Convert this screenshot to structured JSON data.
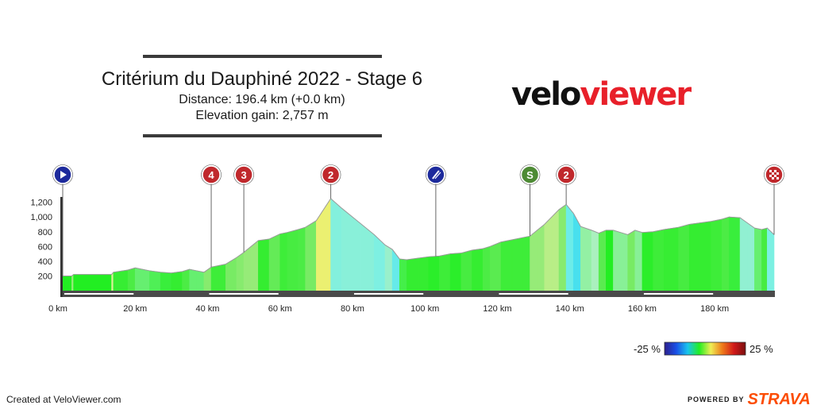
{
  "header": {
    "title": "Critérium du Dauphiné 2022 - Stage 6",
    "distance_line": "Distance: 196.4 km (+0.0 km)",
    "elevation_line": "Elevation gain: 2,757 m"
  },
  "logo": {
    "part1": "velo",
    "part2": "viewer"
  },
  "footer": {
    "created": "Created at VeloViewer.com",
    "powered": "POWERED BY",
    "brand": "STRAVA"
  },
  "legend": {
    "min_label": "-25 %",
    "max_label": "25 %",
    "gradient_colors": [
      "#2d1f8c",
      "#1a4fe6",
      "#19c4ee",
      "#22ee22",
      "#eeee55",
      "#ee7a1a",
      "#d11a1a",
      "#7a0f0f"
    ]
  },
  "chart_data": {
    "type": "area",
    "title": "Critérium du Dauphiné 2022 - Stage 6",
    "xlabel": "",
    "ylabel": "",
    "xlim": [
      0,
      196.4
    ],
    "ylim": [
      0,
      1300
    ],
    "x_ticks": [
      0,
      20,
      40,
      60,
      80,
      100,
      120,
      140,
      160,
      180
    ],
    "x_tick_labels": [
      "0 km",
      "20 km",
      "40 km",
      "60 km",
      "80 km",
      "100 km",
      "120 km",
      "140 km",
      "160 km",
      "180 km"
    ],
    "y_ticks": [
      200,
      400,
      600,
      800,
      1000,
      1200
    ],
    "y_tick_labels": [
      "200",
      "400",
      "600",
      "800",
      "1,000",
      "1,200"
    ],
    "profile": [
      {
        "x": 0,
        "y": 200
      },
      {
        "x": 2.5,
        "y": 200
      },
      {
        "x": 3,
        "y": 220
      },
      {
        "x": 13.5,
        "y": 220
      },
      {
        "x": 14,
        "y": 250
      },
      {
        "x": 18,
        "y": 280
      },
      {
        "x": 20,
        "y": 310
      },
      {
        "x": 22,
        "y": 290
      },
      {
        "x": 24,
        "y": 270
      },
      {
        "x": 27,
        "y": 250
      },
      {
        "x": 30,
        "y": 240
      },
      {
        "x": 33,
        "y": 260
      },
      {
        "x": 35,
        "y": 290
      },
      {
        "x": 37,
        "y": 270
      },
      {
        "x": 39,
        "y": 250
      },
      {
        "x": 41,
        "y": 320
      },
      {
        "x": 43,
        "y": 340
      },
      {
        "x": 45,
        "y": 360
      },
      {
        "x": 48,
        "y": 450
      },
      {
        "x": 50,
        "y": 520
      },
      {
        "x": 52,
        "y": 600
      },
      {
        "x": 54,
        "y": 680
      },
      {
        "x": 57,
        "y": 700
      },
      {
        "x": 60,
        "y": 770
      },
      {
        "x": 62,
        "y": 790
      },
      {
        "x": 65,
        "y": 830
      },
      {
        "x": 67,
        "y": 860
      },
      {
        "x": 70,
        "y": 950
      },
      {
        "x": 74,
        "y": 1250
      },
      {
        "x": 77,
        "y": 1120
      },
      {
        "x": 82,
        "y": 920
      },
      {
        "x": 86,
        "y": 760
      },
      {
        "x": 89,
        "y": 620
      },
      {
        "x": 91,
        "y": 560
      },
      {
        "x": 93,
        "y": 430
      },
      {
        "x": 95,
        "y": 420
      },
      {
        "x": 98,
        "y": 440
      },
      {
        "x": 101,
        "y": 460
      },
      {
        "x": 104,
        "y": 470
      },
      {
        "x": 107,
        "y": 500
      },
      {
        "x": 110,
        "y": 510
      },
      {
        "x": 113,
        "y": 550
      },
      {
        "x": 116,
        "y": 570
      },
      {
        "x": 118,
        "y": 600
      },
      {
        "x": 121,
        "y": 660
      },
      {
        "x": 124,
        "y": 690
      },
      {
        "x": 127,
        "y": 720
      },
      {
        "x": 129,
        "y": 740
      },
      {
        "x": 131,
        "y": 820
      },
      {
        "x": 133,
        "y": 900
      },
      {
        "x": 135,
        "y": 1000
      },
      {
        "x": 137,
        "y": 1100
      },
      {
        "x": 139,
        "y": 1170
      },
      {
        "x": 141,
        "y": 1050
      },
      {
        "x": 143,
        "y": 870
      },
      {
        "x": 146,
        "y": 820
      },
      {
        "x": 148,
        "y": 780
      },
      {
        "x": 150,
        "y": 820
      },
      {
        "x": 152,
        "y": 820
      },
      {
        "x": 154,
        "y": 790
      },
      {
        "x": 156,
        "y": 760
      },
      {
        "x": 158,
        "y": 820
      },
      {
        "x": 160,
        "y": 790
      },
      {
        "x": 163,
        "y": 800
      },
      {
        "x": 166,
        "y": 830
      },
      {
        "x": 170,
        "y": 860
      },
      {
        "x": 173,
        "y": 900
      },
      {
        "x": 176,
        "y": 920
      },
      {
        "x": 179,
        "y": 940
      },
      {
        "x": 182,
        "y": 970
      },
      {
        "x": 184,
        "y": 1000
      },
      {
        "x": 187,
        "y": 990
      },
      {
        "x": 189,
        "y": 920
      },
      {
        "x": 191,
        "y": 850
      },
      {
        "x": 193,
        "y": 830
      },
      {
        "x": 194.5,
        "y": 850
      },
      {
        "x": 196.4,
        "y": 760
      }
    ],
    "markers": [
      {
        "km": 0,
        "label": "",
        "kind": "start",
        "color": "#1d2a9c"
      },
      {
        "km": 41,
        "label": "4",
        "kind": "climb",
        "color": "#c0282c"
      },
      {
        "km": 50,
        "label": "3",
        "kind": "climb",
        "color": "#c0282c"
      },
      {
        "km": 74,
        "label": "2",
        "kind": "climb",
        "color": "#c0282c"
      },
      {
        "km": 103,
        "label": "",
        "kind": "feed",
        "color": "#1d2a9c"
      },
      {
        "km": 129,
        "label": "S",
        "kind": "sprint",
        "color": "#4d8a34"
      },
      {
        "km": 139,
        "label": "2",
        "kind": "climb",
        "color": "#c0282c"
      },
      {
        "km": 196.4,
        "label": "",
        "kind": "finish",
        "color": "#c0282c"
      }
    ]
  }
}
